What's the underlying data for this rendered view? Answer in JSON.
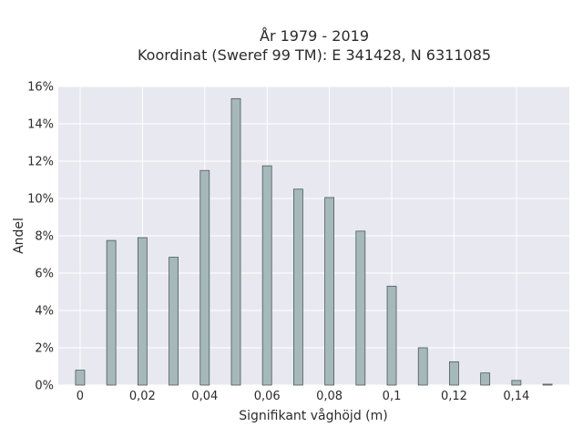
{
  "chart_data": {
    "type": "bar",
    "title": [
      "År 1979 - 2019",
      "Koordinat (Sweref 99 TM): E 341428, N 6311085"
    ],
    "xlabel": "Signifikant våghöjd (m)",
    "ylabel": "Andel",
    "x": [
      0,
      0.01,
      0.02,
      0.03,
      0.04,
      0.05,
      0.06,
      0.07,
      0.08,
      0.09,
      0.1,
      0.11,
      0.12,
      0.13,
      0.14,
      0.15
    ],
    "values": [
      0.008,
      0.0775,
      0.079,
      0.0685,
      0.115,
      0.1535,
      0.1175,
      0.105,
      0.1005,
      0.0825,
      0.053,
      0.02,
      0.0125,
      0.0065,
      0.0025,
      0.0005
    ],
    "xlim": [
      -0.007,
      0.157
    ],
    "ylim": [
      0,
      0.16
    ],
    "xticks": [
      0,
      0.02,
      0.04,
      0.06,
      0.08,
      0.1,
      0.12,
      0.14
    ],
    "xtick_labels": [
      "0",
      "0,02",
      "0,04",
      "0,06",
      "0,08",
      "0,1",
      "0,12",
      "0,14"
    ],
    "yticks": [
      0,
      0.02,
      0.04,
      0.06,
      0.08,
      0.1,
      0.12,
      0.14,
      0.16
    ],
    "ytick_labels": [
      "0%",
      "2%",
      "4%",
      "6%",
      "8%",
      "10%",
      "12%",
      "14%",
      "16%"
    ],
    "grid": true,
    "legend": "none",
    "bar_color": "#a5b9ba",
    "bar_edge_color": "#4d5a5a",
    "plot_background": "#e8e8f0",
    "grid_color": "#ffffff"
  }
}
